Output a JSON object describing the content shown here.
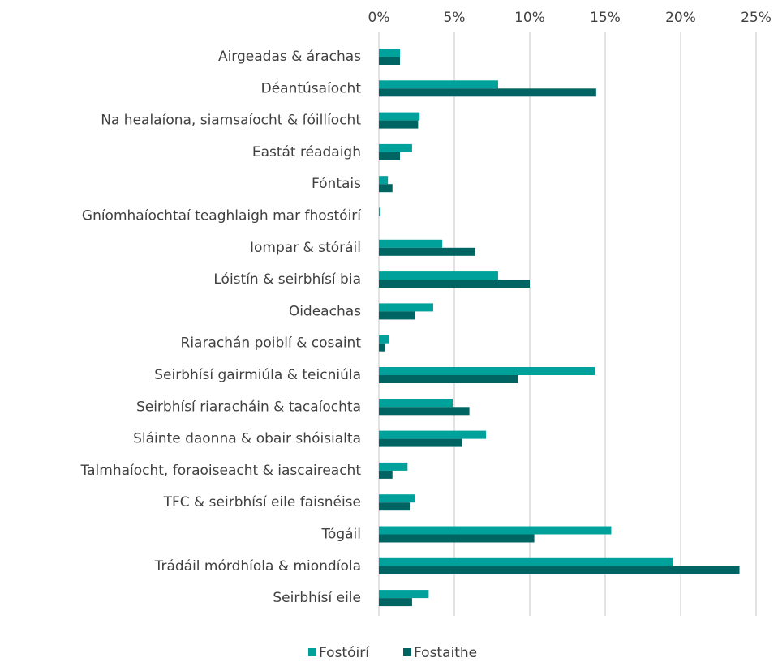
{
  "chart_data": {
    "type": "barh",
    "categories": [
      "Airgeadas & árachas",
      "Déantúsaíocht",
      "Na healaíona, siamsaíocht & fóillíocht",
      "Eastát réadaigh",
      "Fóntais",
      "Gníomhaíochtaí teaghlaigh mar fhostóirí",
      "Iompar & stóráil",
      "Lóistín & seirbhísí bia",
      "Oideachas",
      "Riarachán poiblí & cosaint",
      "Seirbhísí gairmiúla & teicniúla",
      "Seirbhísí riaracháin & tacaíochta",
      "Sláinte daonna & obair shóisialta",
      "Talmhaíocht, foraoiseacht & iascaireacht",
      "TFC & seirbhísí eile faisnéise",
      "Tógáil",
      "Trádáil mórdhíola & miondíola",
      "Seirbhísí eile"
    ],
    "series": [
      {
        "name": "Fostóirí",
        "color": "#00a09b",
        "values": [
          1.4,
          7.9,
          2.7,
          2.2,
          0.6,
          0.1,
          4.2,
          7.9,
          3.6,
          0.7,
          14.3,
          4.9,
          7.1,
          1.9,
          2.4,
          15.4,
          19.5,
          3.3
        ]
      },
      {
        "name": "Fostaithe",
        "color": "#006462",
        "values": [
          1.4,
          14.4,
          2.6,
          1.4,
          0.9,
          0.0,
          6.4,
          10.0,
          2.4,
          0.4,
          9.2,
          6.0,
          5.5,
          0.9,
          2.1,
          10.3,
          23.9,
          2.2
        ]
      }
    ],
    "xlim": [
      0,
      25
    ],
    "xticks": [
      {
        "value": 0,
        "label": "0%"
      },
      {
        "value": 5,
        "label": "5%"
      },
      {
        "value": 10,
        "label": "10%"
      },
      {
        "value": 15,
        "label": "15%"
      },
      {
        "value": 20,
        "label": "20%"
      },
      {
        "value": 25,
        "label": "25%"
      }
    ],
    "grid": true,
    "legend": "bottom"
  }
}
